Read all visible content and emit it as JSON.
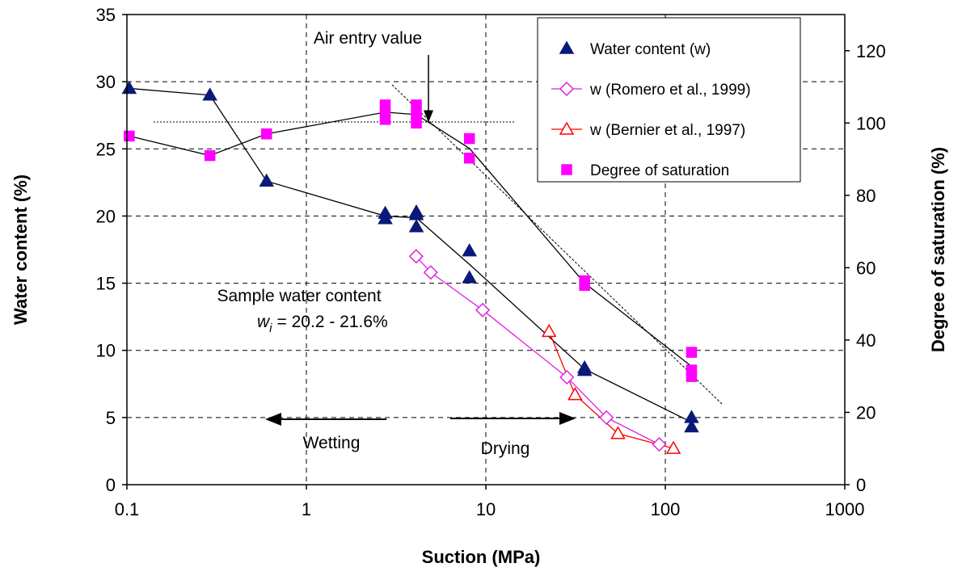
{
  "chart_data": {
    "type": "scatter",
    "xlabel": "Suction (MPa)",
    "ylabel": "Water content (%)",
    "y2label": "Degree of saturation (%)",
    "xscale": "log",
    "xlim": [
      0.1,
      1000
    ],
    "xticks": [
      0.1,
      1,
      10,
      100,
      1000
    ],
    "ylim": [
      0,
      35
    ],
    "yticks": [
      0,
      5,
      10,
      15,
      20,
      25,
      30,
      35
    ],
    "y2lim": [
      0,
      130
    ],
    "y2ticks": [
      0,
      20,
      40,
      60,
      80,
      100,
      120
    ],
    "grid": true,
    "legend": "upper right",
    "series": [
      {
        "name": "Water content (w)",
        "color": "#0a1a78",
        "marker": "triangle",
        "filled": true,
        "line_color": "#000000",
        "x": [
          0.103,
          0.29,
          0.6,
          2.75,
          2.75,
          4.1,
          4.1,
          4.1,
          8.1,
          8.1,
          35.5,
          35.5,
          140,
          140
        ],
        "values": [
          29.5,
          29.0,
          22.6,
          20.2,
          19.8,
          20.3,
          20.1,
          19.2,
          17.4,
          15.4,
          8.7,
          8.5,
          5.0,
          4.3
        ]
      },
      {
        "name": "w (Romero et al., 1999)",
        "color": "#e020e0",
        "marker": "diamond",
        "filled": false,
        "line_color": "#e020e0",
        "x": [
          4.09,
          4.93,
          9.6,
          28.3,
          47,
          92.5
        ],
        "values": [
          17.0,
          15.8,
          13.0,
          8.0,
          5.0,
          3.0
        ]
      },
      {
        "name": "w (Bernier et al., 1997)",
        "color": "#ff0000",
        "marker": "triangle",
        "filled": false,
        "line_color": "#ff0000",
        "x": [
          22.5,
          31.4,
          54.5,
          111
        ],
        "values": [
          11.4,
          6.7,
          3.8,
          2.7
        ]
      },
      {
        "name": "Degree of saturation",
        "color": "#ff00ff",
        "marker": "square",
        "filled": true,
        "axis": "y2",
        "line_color": "#000000",
        "x": [
          0.103,
          0.29,
          0.6,
          2.75,
          2.75,
          2.75,
          4.1,
          4.1,
          4.1,
          8.1,
          8.1,
          35.5,
          35.5,
          140,
          140,
          140
        ],
        "values": [
          96.4,
          91,
          97,
          105,
          103,
          101,
          105,
          102,
          100,
          95.7,
          90.3,
          56.4,
          55.1,
          36.6,
          31.7,
          29.9
        ]
      }
    ],
    "annotations": {
      "air_entry": "Air entry value",
      "sample": "Sample water content",
      "wi_symbol": "w",
      "wi_sub": "i",
      "wi_range": "= 20.2 - 21.6%",
      "wetting": "Wetting",
      "drying": "Drying"
    }
  }
}
